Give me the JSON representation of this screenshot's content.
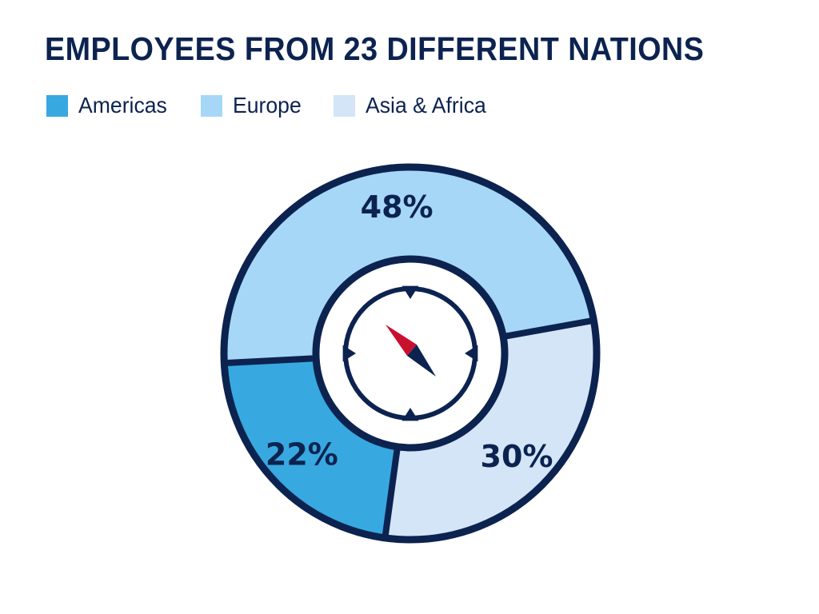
{
  "chart_data": {
    "type": "pie",
    "title": "EMPLOYEES FROM 23 DIFFERENT NATIONS",
    "legend_placement": "top-left",
    "slices": [
      {
        "name": "Americas",
        "value": 22,
        "label": "22%",
        "color": "#38a8e0"
      },
      {
        "name": "Europe",
        "value": 48,
        "label": "48%",
        "color": "#a6d7f7"
      },
      {
        "name": "Asia & Africa",
        "value": 30,
        "label": "30%",
        "color": "#d3e5f7"
      }
    ],
    "outline_color": "#0c2350",
    "center_icon": "compass-icon",
    "compass_needle_color": "#c8102e"
  }
}
